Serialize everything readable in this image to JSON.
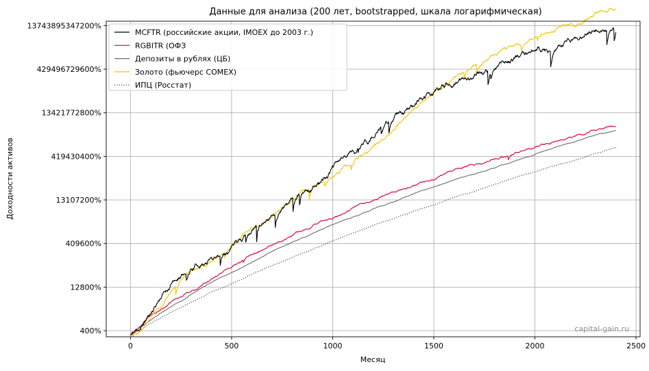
{
  "chart_data": {
    "type": "line",
    "title": "Данные для анализа (200 лет, bootstrapped, шкала логарифмическая)",
    "xlabel": "Месяц",
    "ylabel": "Доходности активов",
    "yscale": "log",
    "grid": true,
    "legend_position": "top-left",
    "watermark": "capital-gain.ru",
    "xlim": [
      -120,
      2520
    ],
    "x_ticks": [
      0,
      500,
      1000,
      1500,
      2000,
      2500
    ],
    "x_tick_labels": [
      "0",
      "500",
      "1000",
      "1500",
      "2000",
      "2500"
    ],
    "ylim_log2": [
      6.3,
      42.5
    ],
    "y_ticks_log2": [
      12,
      17,
      22,
      27,
      32,
      37,
      42
    ],
    "y_tick_labels": [
      "400%",
      "12800%",
      "409600%",
      "13107200%",
      "419430400%",
      "13421772800%",
      "429496729600%",
      "13743895347200%"
    ],
    "y_ticks_log2_full": [
      7,
      12,
      17,
      22,
      27,
      32,
      37,
      42
    ],
    "x_range": [
      0,
      2400
    ],
    "series": [
      {
        "name": "MCFTR (российские акции, IMOEX до 2003 г.)",
        "color": "#000000",
        "dash": "solid",
        "seed": 11,
        "noise": 0.9,
        "drops": 0.012,
        "anchors": [
          [
            0,
            6.5
          ],
          [
            50,
            7.3
          ],
          [
            100,
            9.0
          ],
          [
            150,
            11.0
          ],
          [
            200,
            12.3
          ],
          [
            250,
            13.3
          ],
          [
            300,
            14.5
          ],
          [
            400,
            15.5
          ],
          [
            500,
            17.0
          ],
          [
            600,
            18.5
          ],
          [
            700,
            20.6
          ],
          [
            800,
            22.0
          ],
          [
            900,
            23.8
          ],
          [
            1000,
            25.6
          ],
          [
            1100,
            27.6
          ],
          [
            1200,
            29.3
          ],
          [
            1300,
            31.2
          ],
          [
            1400,
            32.6
          ],
          [
            1500,
            34.3
          ],
          [
            1600,
            35.5
          ],
          [
            1700,
            36.5
          ],
          [
            1800,
            37.3
          ],
          [
            1900,
            38.3
          ],
          [
            2000,
            38.9
          ],
          [
            2100,
            39.5
          ],
          [
            2200,
            40.6
          ],
          [
            2300,
            41.6
          ],
          [
            2400,
            42.1
          ]
        ]
      },
      {
        "name": "RGBITR (ОФЗ",
        "color": "#d6002f",
        "dash": "solid",
        "seed": 23,
        "noise": 0.3,
        "drops": 0.002,
        "anchors": [
          [
            0,
            6.5
          ],
          [
            100,
            8.6
          ],
          [
            200,
            10.2
          ],
          [
            300,
            11.6
          ],
          [
            400,
            13.0
          ],
          [
            500,
            14.3
          ],
          [
            600,
            15.6
          ],
          [
            700,
            16.9
          ],
          [
            800,
            18.0
          ],
          [
            900,
            19.0
          ],
          [
            1000,
            20.0
          ],
          [
            1100,
            21.0
          ],
          [
            1200,
            22.0
          ],
          [
            1300,
            22.9
          ],
          [
            1400,
            23.8
          ],
          [
            1500,
            24.6
          ],
          [
            1600,
            25.4
          ],
          [
            1700,
            26.1
          ],
          [
            1800,
            26.8
          ],
          [
            1900,
            27.4
          ],
          [
            2000,
            28.0
          ],
          [
            2100,
            28.7
          ],
          [
            2200,
            29.4
          ],
          [
            2300,
            30.0
          ],
          [
            2400,
            30.5
          ]
        ]
      },
      {
        "name": "Депозиты в рублях (ЦБ)",
        "color": "#6e6e6e",
        "dash": "solid",
        "seed": 37,
        "noise": 0.12,
        "drops": 0,
        "anchors": [
          [
            0,
            6.5
          ],
          [
            100,
            8.2
          ],
          [
            200,
            9.8
          ],
          [
            300,
            11.2
          ],
          [
            400,
            12.5
          ],
          [
            500,
            13.7
          ],
          [
            600,
            14.9
          ],
          [
            700,
            16.0
          ],
          [
            800,
            17.1
          ],
          [
            900,
            18.1
          ],
          [
            1000,
            19.1
          ],
          [
            1100,
            20.0
          ],
          [
            1200,
            20.9
          ],
          [
            1300,
            21.8
          ],
          [
            1400,
            22.7
          ],
          [
            1500,
            23.5
          ],
          [
            1600,
            24.3
          ],
          [
            1700,
            25.0
          ],
          [
            1800,
            25.7
          ],
          [
            1900,
            26.5
          ],
          [
            2000,
            27.2
          ],
          [
            2100,
            28.0
          ],
          [
            2200,
            28.7
          ],
          [
            2300,
            29.4
          ],
          [
            2400,
            30.0
          ]
        ]
      },
      {
        "name": "Золото (фьючерс COMEX)",
        "color": "#f2c500",
        "dash": "solid",
        "seed": 51,
        "noise": 0.55,
        "drops": 0.006,
        "anchors": [
          [
            0,
            6.6
          ],
          [
            50,
            7.0
          ],
          [
            100,
            8.5
          ],
          [
            150,
            10.0
          ],
          [
            200,
            11.6
          ],
          [
            250,
            12.8
          ],
          [
            300,
            13.8
          ],
          [
            400,
            15.3
          ],
          [
            500,
            16.8
          ],
          [
            600,
            18.6
          ],
          [
            700,
            20.2
          ],
          [
            800,
            21.8
          ],
          [
            900,
            23.2
          ],
          [
            1000,
            24.5
          ],
          [
            1100,
            26.3
          ],
          [
            1200,
            28.0
          ],
          [
            1300,
            30.2
          ],
          [
            1400,
            32.2
          ],
          [
            1500,
            34.2
          ],
          [
            1600,
            36.0
          ],
          [
            1700,
            37.6
          ],
          [
            1800,
            38.8
          ],
          [
            1900,
            39.6
          ],
          [
            2000,
            40.5
          ],
          [
            2100,
            41.3
          ],
          [
            2200,
            42.1
          ],
          [
            2300,
            43.0
          ],
          [
            2400,
            44.0
          ]
        ]
      },
      {
        "name": "ИПЦ (Росстат)",
        "color": "#333333",
        "dash": "dotted",
        "seed": 67,
        "noise": 0.1,
        "drops": 0,
        "anchors": [
          [
            0,
            6.5
          ],
          [
            100,
            7.8
          ],
          [
            200,
            9.1
          ],
          [
            300,
            10.3
          ],
          [
            400,
            11.4
          ],
          [
            500,
            12.4
          ],
          [
            600,
            13.4
          ],
          [
            700,
            14.4
          ],
          [
            800,
            15.4
          ],
          [
            900,
            16.3
          ],
          [
            1000,
            17.3
          ],
          [
            1100,
            18.2
          ],
          [
            1200,
            19.1
          ],
          [
            1300,
            19.9
          ],
          [
            1400,
            20.7
          ],
          [
            1500,
            21.5
          ],
          [
            1600,
            22.3
          ],
          [
            1700,
            23.0
          ],
          [
            1800,
            23.8
          ],
          [
            1900,
            24.5
          ],
          [
            2000,
            25.2
          ],
          [
            2100,
            25.9
          ],
          [
            2200,
            26.6
          ],
          [
            2300,
            27.3
          ],
          [
            2400,
            28.0
          ]
        ]
      }
    ]
  }
}
